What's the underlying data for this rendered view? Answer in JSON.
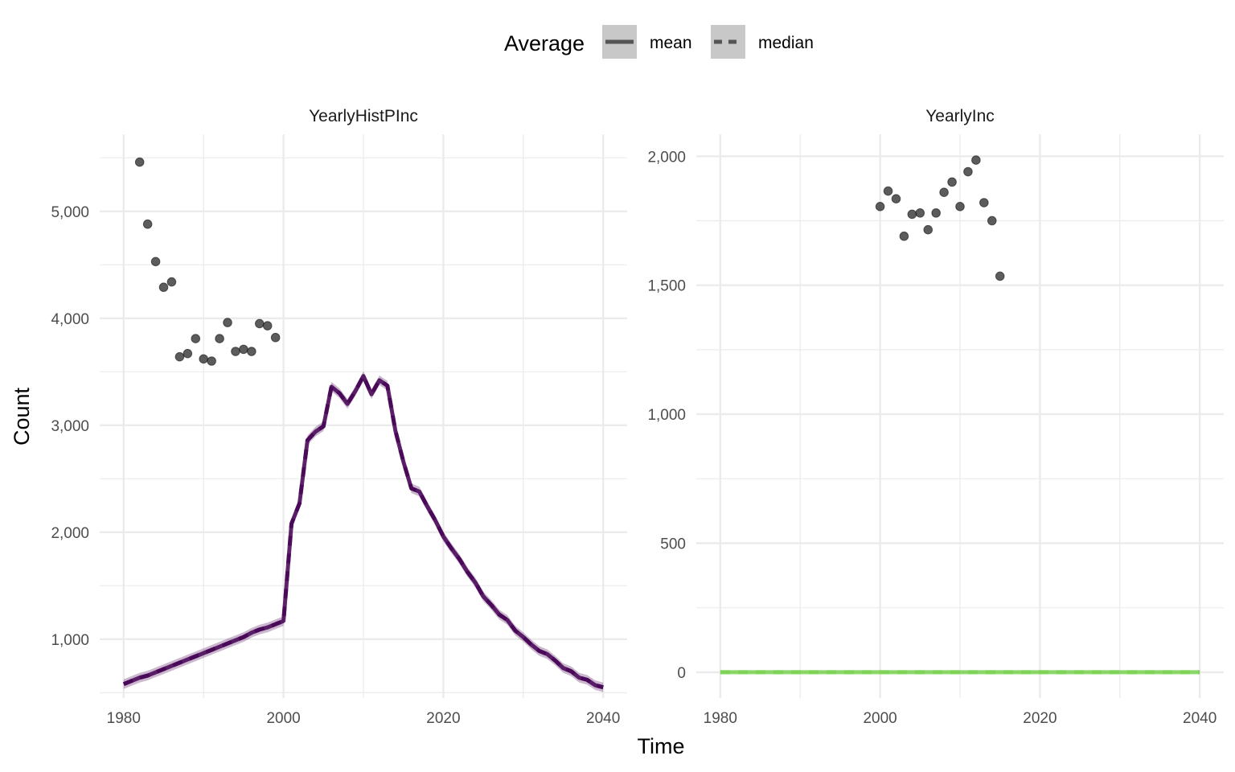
{
  "chart_data": {
    "type": "line",
    "xlabel": "Time",
    "ylabel": "Count",
    "legend": {
      "title": "Average",
      "position": "top",
      "entries": [
        {
          "label": "mean",
          "linetype": "solid"
        },
        {
          "label": "median",
          "linetype": "dashed"
        }
      ]
    },
    "colors": {
      "panel1_line": "#440154",
      "panel2_line": "#7AD151",
      "points": "#333333",
      "grid": "#EBEBEB",
      "legend_key_bg": "#C8C8C8",
      "legend_line": "#555555"
    },
    "grid": true,
    "panels": [
      {
        "title": "YearlyHistPInc",
        "xlim": [
          1977,
          2043
        ],
        "ylim": [
          450,
          5720
        ],
        "xticks": [
          1980,
          2000,
          2020,
          2040
        ],
        "xtick_labels": [
          "1980",
          "2000",
          "2020",
          "2040"
        ],
        "yticks": [
          1000,
          2000,
          3000,
          4000,
          5000
        ],
        "ytick_labels": [
          "1,000",
          "2,000",
          "3,000",
          "4,000",
          "5,000"
        ],
        "observed_points": {
          "x": [
            1982,
            1983,
            1984,
            1985,
            1986,
            1987,
            1988,
            1989,
            1990,
            1991,
            1992,
            1993,
            1994,
            1995,
            1996,
            1997,
            1998,
            1999
          ],
          "y": [
            5460,
            4880,
            4530,
            4290,
            4340,
            3640,
            3670,
            3810,
            3620,
            3600,
            3810,
            3960,
            3690,
            3710,
            3690,
            3950,
            3930,
            3820
          ]
        },
        "series": [
          {
            "name": "mean",
            "x": [
              1980,
              1981,
              1982,
              1983,
              1984,
              1985,
              1986,
              1987,
              1988,
              1989,
              1990,
              1991,
              1992,
              1993,
              1994,
              1995,
              1996,
              1997,
              1998,
              1999,
              2000,
              2001,
              2002,
              2003,
              2004,
              2005,
              2006,
              2007,
              2008,
              2009,
              2010,
              2011,
              2012,
              2013,
              2014,
              2015,
              2016,
              2017,
              2018,
              2019,
              2020,
              2021,
              2022,
              2023,
              2024,
              2025,
              2026,
              2027,
              2028,
              2029,
              2030,
              2031,
              2032,
              2033,
              2034,
              2035,
              2036,
              2037,
              2038,
              2039,
              2040
            ],
            "y": [
              580,
              610,
              640,
              660,
              690,
              720,
              750,
              780,
              810,
              840,
              870,
              900,
              930,
              960,
              990,
              1020,
              1060,
              1090,
              1110,
              1140,
              1170,
              2080,
              2270,
              2860,
              2940,
              2990,
              3360,
              3300,
              3200,
              3320,
              3460,
              3290,
              3420,
              3370,
              2950,
              2660,
              2410,
              2380,
              2240,
              2110,
              1960,
              1850,
              1750,
              1630,
              1530,
              1400,
              1320,
              1230,
              1180,
              1080,
              1020,
              950,
              890,
              860,
              800,
              730,
              700,
              640,
              620,
              570,
              550
            ]
          },
          {
            "name": "median",
            "x": [
              1980,
              1981,
              1982,
              1983,
              1984,
              1985,
              1986,
              1987,
              1988,
              1989,
              1990,
              1991,
              1992,
              1993,
              1994,
              1995,
              1996,
              1997,
              1998,
              1999,
              2000,
              2001,
              2002,
              2003,
              2004,
              2005,
              2006,
              2007,
              2008,
              2009,
              2010,
              2011,
              2012,
              2013,
              2014,
              2015,
              2016,
              2017,
              2018,
              2019,
              2020,
              2021,
              2022,
              2023,
              2024,
              2025,
              2026,
              2027,
              2028,
              2029,
              2030,
              2031,
              2032,
              2033,
              2034,
              2035,
              2036,
              2037,
              2038,
              2039,
              2040
            ],
            "y": [
              580,
              610,
              640,
              660,
              690,
              720,
              750,
              780,
              810,
              840,
              870,
              900,
              930,
              960,
              990,
              1020,
              1060,
              1090,
              1110,
              1140,
              1170,
              2080,
              2270,
              2860,
              2940,
              2990,
              3360,
              3300,
              3200,
              3320,
              3460,
              3290,
              3420,
              3370,
              2950,
              2660,
              2410,
              2380,
              2240,
              2110,
              1960,
              1850,
              1750,
              1630,
              1530,
              1400,
              1320,
              1230,
              1180,
              1080,
              1020,
              950,
              890,
              860,
              800,
              730,
              700,
              640,
              620,
              570,
              550
            ]
          }
        ]
      },
      {
        "title": "YearlyInc",
        "xlim": [
          1977,
          2043
        ],
        "ylim": [
          -100,
          2085
        ],
        "xticks": [
          1980,
          2000,
          2020,
          2040
        ],
        "xtick_labels": [
          "1980",
          "2000",
          "2020",
          "2040"
        ],
        "yticks": [
          0,
          500,
          1000,
          1500,
          2000
        ],
        "ytick_labels": [
          "0",
          "500",
          "1,000",
          "1,500",
          "2,000"
        ],
        "observed_points": {
          "x": [
            2000,
            2001,
            2002,
            2003,
            2004,
            2005,
            2006,
            2007,
            2008,
            2009,
            2010,
            2011,
            2012,
            2013,
            2014,
            2015
          ],
          "y": [
            1805,
            1865,
            1835,
            1690,
            1775,
            1780,
            1715,
            1780,
            1860,
            1900,
            1805,
            1940,
            1985,
            1820,
            1750,
            1535
          ]
        },
        "series": [
          {
            "name": "mean",
            "x": [
              1980,
              2040
            ],
            "y": [
              0,
              0
            ]
          },
          {
            "name": "median",
            "x": [
              1980,
              2040
            ],
            "y": [
              0,
              0
            ]
          }
        ]
      }
    ]
  }
}
